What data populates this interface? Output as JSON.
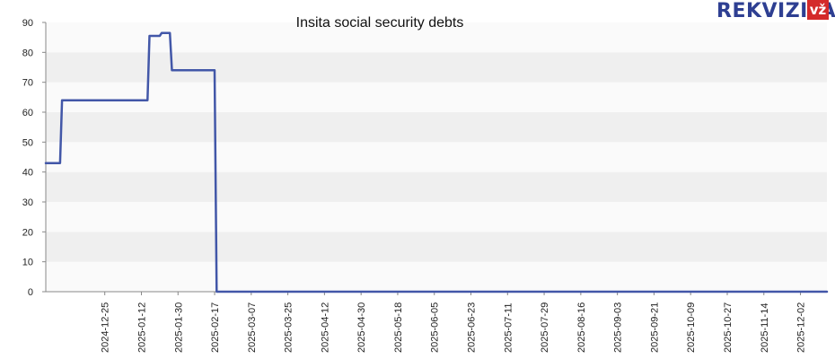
{
  "logo": {
    "text": "REKVIZITAI",
    "badge": "vž",
    "color": "#2e3f92",
    "badge_color": "#d42a2a"
  },
  "chart_data": {
    "type": "line",
    "title": "Insita social security debts",
    "xlabel": "",
    "ylabel": "",
    "ylim": [
      0,
      90
    ],
    "yticks": [
      0,
      10,
      20,
      30,
      40,
      50,
      60,
      70,
      80,
      90
    ],
    "xlim": [
      "2024-11-26",
      "2025-12-15"
    ],
    "xticks": [
      "2024-12-25",
      "2025-01-12",
      "2025-01-30",
      "2025-02-17",
      "2025-03-07",
      "2025-03-25",
      "2025-04-12",
      "2025-04-30",
      "2025-05-18",
      "2025-06-05",
      "2025-06-23",
      "2025-07-11",
      "2025-07-29",
      "2025-08-16",
      "2025-09-03",
      "2025-09-21",
      "2025-10-09",
      "2025-10-27",
      "2025-11-14",
      "2025-12-02"
    ],
    "grid": "horizontal bands",
    "line_color": "#4257a8",
    "series": [
      {
        "x": [
          "2024-11-26",
          "2024-12-03",
          "2024-12-04",
          "2025-01-15",
          "2025-01-16",
          "2025-01-21",
          "2025-01-22",
          "2025-01-26",
          "2025-01-27",
          "2025-02-17",
          "2025-02-18",
          "2025-12-15"
        ],
        "y": [
          43,
          43,
          64,
          64,
          85.5,
          85.5,
          86.5,
          86.5,
          74,
          74,
          0,
          0
        ]
      }
    ]
  }
}
